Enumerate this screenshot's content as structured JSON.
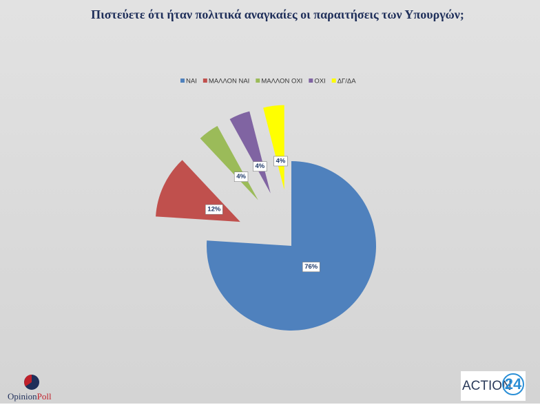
{
  "chart_data": {
    "type": "pie",
    "title": "Πιστεύετε ότι ήταν πολιτικά αναγκαίες οι παραιτήσεις των Υπουργών;",
    "categories": [
      "ΝΑΙ",
      "ΜΑΛΛΟΝ ΝΑΙ",
      "ΜΑΛΛΟΝ ΟΧΙ",
      "ΟΧΙ",
      "ΔΓ/ΔΑ"
    ],
    "values": [
      76,
      12,
      4,
      4,
      4
    ],
    "value_labels": [
      "76%",
      "12%",
      "4%",
      "4%",
      "4%"
    ],
    "colors": [
      "#4f81bd",
      "#c0504d",
      "#9bbb59",
      "#8064a2",
      "#ffff00"
    ],
    "legend": "top"
  },
  "logos": {
    "left": [
      "Opinion",
      "Poll"
    ],
    "right": [
      "ACTION",
      "24"
    ]
  }
}
